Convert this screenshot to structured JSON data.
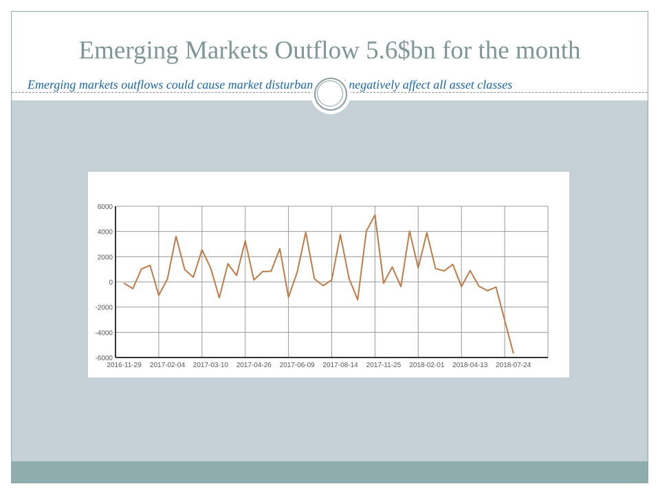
{
  "slide": {
    "title": "Emerging Markets Outflow 5.6$bn for the month",
    "subtitle": "Emerging markets outflows could cause market disturbance and negatively affect all asset classes"
  },
  "colors": {
    "line": "#c07a45",
    "body_band": "#c5d1d7",
    "bottom_band": "#8fadad",
    "title": "#7d9696",
    "subtitle": "#1a66ac"
  },
  "chart_data": {
    "type": "line",
    "title": "",
    "xlabel": "",
    "ylabel": "",
    "ylim": [
      -6000,
      6000
    ],
    "yticks": [
      "6000",
      "4000",
      "2000",
      "0",
      "-2000",
      "-4000",
      "-6000"
    ],
    "xtick_labels": [
      {
        "index": 0,
        "label": "2016-11-29"
      },
      {
        "index": 5,
        "label": "2017-02-04"
      },
      {
        "index": 10,
        "label": "2017-03-10"
      },
      {
        "index": 15,
        "label": "2017-04-26"
      },
      {
        "index": 20,
        "label": "2017-06-09"
      },
      {
        "index": 25,
        "label": "2017-08-14"
      },
      {
        "index": 30,
        "label": "2017-11-25"
      },
      {
        "index": 35,
        "label": "2018-02-01"
      },
      {
        "index": 40,
        "label": "2018-04-13"
      },
      {
        "index": 45,
        "label": "2018-07-24"
      }
    ],
    "grid": true,
    "series": [
      {
        "values": [
          -110,
          -540,
          1020,
          1310,
          -1070,
          220,
          3610,
          980,
          370,
          2540,
          1110,
          -1260,
          1440,
          500,
          3260,
          150,
          810,
          850,
          2630,
          -1220,
          740,
          3940,
          240,
          -300,
          150,
          3760,
          280,
          -1420,
          4020,
          5310,
          -110,
          1180,
          -370,
          4020,
          1110,
          3900,
          1060,
          870,
          1390,
          -370,
          890,
          -330,
          -700,
          -410,
          -3050,
          -5650
        ]
      }
    ]
  }
}
